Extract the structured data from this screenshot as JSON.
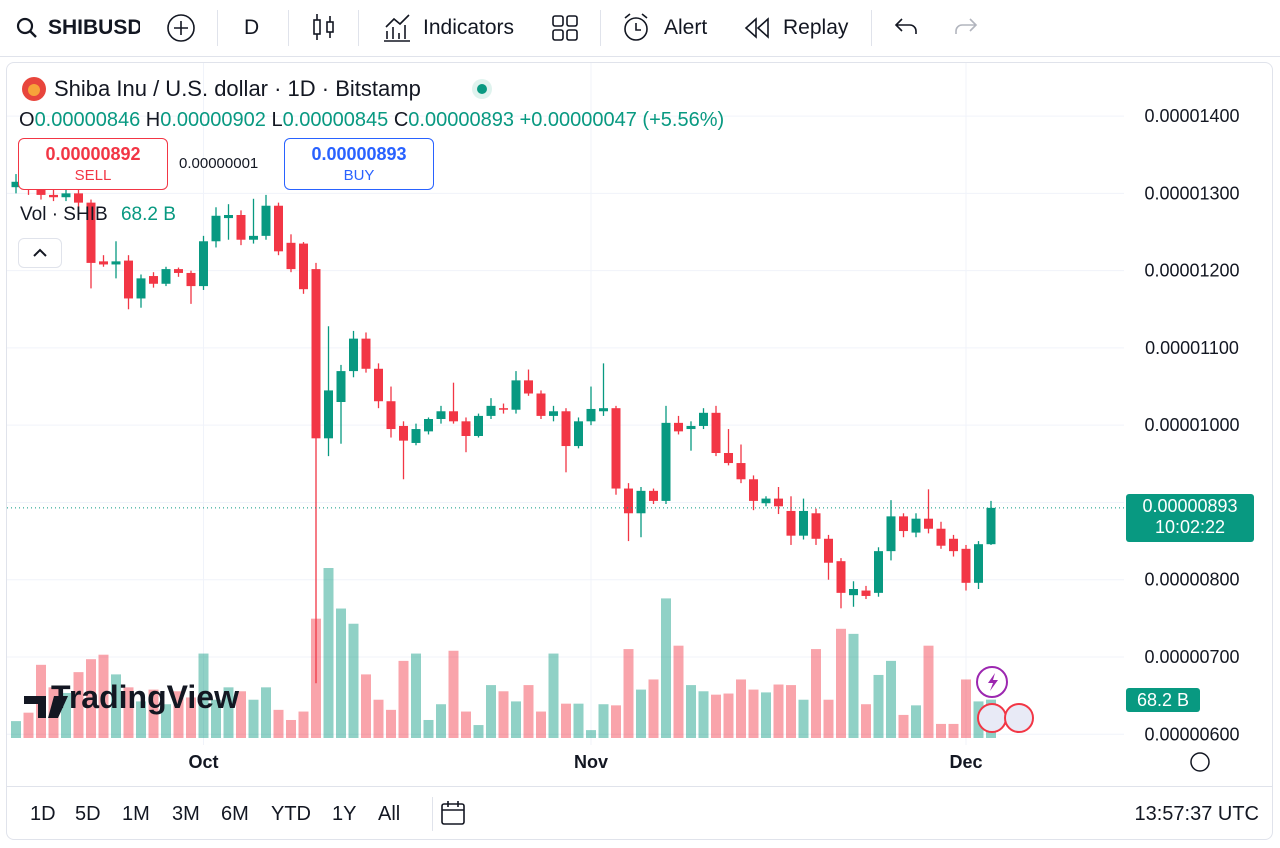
{
  "toolbar": {
    "symbol": "SHIBUSD",
    "interval": "D",
    "indicators": "Indicators",
    "alert": "Alert",
    "replay": "Replay"
  },
  "legend": {
    "title": "Shiba Inu / U.S. dollar · 1D · Bitstamp",
    "o_key": "O",
    "o": "0.00000846",
    "h_key": "H",
    "h": "0.00000902",
    "l_key": "L",
    "l": "0.00000845",
    "c_key": "C",
    "c": "0.00000893",
    "change": "+0.00000047 (+5.56%)"
  },
  "trade": {
    "sell_price": "0.00000892",
    "sell": "SELL",
    "spread": "0.00000001",
    "buy_price": "0.00000893",
    "buy": "BUY"
  },
  "price_tag": {
    "price": "0.00000893",
    "countdown": "10:02:22"
  },
  "watermark": "TradingView",
  "bottom_bar": {
    "ranges": [
      "1D",
      "5D",
      "1M",
      "3M",
      "6M",
      "YTD",
      "1Y",
      "All"
    ],
    "clock": "13:57:37 UTC"
  },
  "chart_data": {
    "type": "candlestick",
    "categories": [
      null,
      null,
      null,
      null,
      null,
      null,
      null,
      null,
      null,
      null,
      null,
      null,
      null,
      null,
      null,
      "Oct",
      null,
      null,
      null,
      null,
      null,
      null,
      null,
      null,
      null,
      null,
      null,
      null,
      null,
      null,
      null,
      null,
      null,
      null,
      null,
      null,
      null,
      null,
      null,
      null,
      null,
      null,
      null,
      null,
      null,
      null,
      "Nov",
      null,
      null,
      null,
      null,
      null,
      null,
      null,
      null,
      null,
      null,
      null,
      null,
      null,
      null,
      null,
      null,
      null,
      null,
      null,
      null,
      null,
      null,
      null,
      null,
      null,
      null,
      null,
      null,
      null,
      "Dec",
      null,
      null
    ],
    "open": [
      1.308e-05,
      1.315e-05,
      1.305e-05,
      1.298e-05,
      1.295e-05,
      1.3e-05,
      1.288e-05,
      1.212e-05,
      1.208e-05,
      1.213e-05,
      1.164e-05,
      1.193e-05,
      1.183e-05,
      1.202e-05,
      1.197e-05,
      1.18e-05,
      1.238e-05,
      1.268e-05,
      1.272e-05,
      1.24e-05,
      1.245e-05,
      1.284e-05,
      1.236e-05,
      1.235e-05,
      1.202e-05,
      9.83e-06,
      1.03e-05,
      1.07e-05,
      1.112e-05,
      1.073e-05,
      1.031e-05,
      9.99e-06,
      9.77e-06,
      9.92e-06,
      1.008e-05,
      1.018e-05,
      1.005e-05,
      9.86e-06,
      1.012e-05,
      1.022e-05,
      1.02e-05,
      1.058e-05,
      1.041e-05,
      1.012e-05,
      1.018e-05,
      9.73e-06,
      1.005e-05,
      1.018e-05,
      1.022e-05,
      9.18e-06,
      8.86e-06,
      9.15e-06,
      9.02e-06,
      1.003e-05,
      9.95e-06,
      9.99e-06,
      1.016e-05,
      9.64e-06,
      9.51e-06,
      9.3e-06,
      8.99e-06,
      9.05e-06,
      8.89e-06,
      8.57e-06,
      8.86e-06,
      8.53e-06,
      8.24e-06,
      7.8e-06,
      7.86e-06,
      7.83e-06,
      8.37e-06,
      8.82e-06,
      8.61e-06,
      8.79e-06,
      8.66e-06,
      8.53e-06,
      8.4e-06,
      7.96e-06,
      8.46e-06
    ],
    "high": [
      1.325e-05,
      1.322e-05,
      1.312e-05,
      1.308e-05,
      1.31e-05,
      1.305e-05,
      1.292e-05,
      1.22e-05,
      1.238e-05,
      1.22e-05,
      1.195e-05,
      1.198e-05,
      1.205e-05,
      1.204e-05,
      1.2e-05,
      1.245e-05,
      1.282e-05,
      1.286e-05,
      1.278e-05,
      1.293e-05,
      1.298e-05,
      1.288e-05,
      1.247e-05,
      1.237e-05,
      1.21e-05,
      1.128e-05,
      1.078e-05,
      1.122e-05,
      1.12e-05,
      1.08e-05,
      1.05e-05,
      1.005e-05,
      1.002e-05,
      1.01e-05,
      1.025e-05,
      1.055e-05,
      1.01e-05,
      1.015e-05,
      1.035e-05,
      1.028e-05,
      1.07e-05,
      1.072e-05,
      1.045e-05,
      1.025e-05,
      1.022e-05,
      1.01e-05,
      1.05e-05,
      1.08e-05,
      1.025e-05,
      9.25e-06,
      9.2e-06,
      9.18e-06,
      1.025e-05,
      1.012e-05,
      1.005e-05,
      1.022e-05,
      1.025e-05,
      9.95e-06,
      9.75e-06,
      9.35e-06,
      9.08e-06,
      9.2e-06,
      9.08e-06,
      9.05e-06,
      8.92e-06,
      8.58e-06,
      8.28e-06,
      7.98e-06,
      7.92e-06,
      8.42e-06,
      9.03e-06,
      8.86e-06,
      8.86e-06,
      9.17e-06,
      8.75e-06,
      8.58e-06,
      8.45e-06,
      8.5e-06,
      9.02e-06
    ],
    "low": [
      1.3e-05,
      1.298e-05,
      1.292e-05,
      1.29e-05,
      1.29e-05,
      1.282e-05,
      1.177e-05,
      1.205e-05,
      1.19e-05,
      1.15e-05,
      1.152e-05,
      1.178e-05,
      1.18e-05,
      1.192e-05,
      1.157e-05,
      1.175e-05,
      1.23e-05,
      1.24e-05,
      1.233e-05,
      1.235e-05,
      1.24e-05,
      1.22e-05,
      1.198e-05,
      1.17e-05,
      6.66e-06,
      9.6e-06,
      9.76e-06,
      1.062e-05,
      1.068e-05,
      1.022e-05,
      9.84e-06,
      9.3e-06,
      9.74e-06,
      9.88e-06,
      1.002e-05,
      1.002e-05,
      9.65e-06,
      9.84e-06,
      1.008e-05,
      1.015e-05,
      1.015e-05,
      1.038e-05,
      1.008e-05,
      1.005e-05,
      9.39e-06,
      9.7e-06,
      1e-05,
      1.012e-05,
      9.1e-06,
      8.5e-06,
      8.55e-06,
      8.98e-06,
      8.98e-06,
      9.88e-06,
      9.67e-06,
      9.95e-06,
      9.6e-06,
      9.48e-06,
      9.25e-06,
      8.9e-06,
      8.95e-06,
      8.85e-06,
      8.45e-06,
      8.52e-06,
      8.45e-06,
      8e-06,
      7.63e-06,
      7.65e-06,
      7.75e-06,
      7.78e-06,
      8.25e-06,
      8.55e-06,
      8.55e-06,
      8.6e-06,
      8.4e-06,
      8.3e-06,
      7.86e-06,
      7.88e-06,
      8.45e-06
    ],
    "close": [
      1.315e-05,
      1.305e-05,
      1.298e-05,
      1.295e-05,
      1.3e-05,
      1.288e-05,
      1.21e-05,
      1.208e-05,
      1.212e-05,
      1.164e-05,
      1.19e-05,
      1.183e-05,
      1.202e-05,
      1.197e-05,
      1.18e-05,
      1.238e-05,
      1.271e-05,
      1.272e-05,
      1.24e-05,
      1.245e-05,
      1.284e-05,
      1.225e-05,
      1.202e-05,
      1.176e-05,
      9.83e-06,
      1.045e-05,
      1.07e-05,
      1.112e-05,
      1.073e-05,
      1.031e-05,
      9.95e-06,
      9.8e-06,
      9.95e-06,
      1.008e-05,
      1.018e-05,
      1.005e-05,
      9.86e-06,
      1.012e-05,
      1.025e-05,
      1.02e-05,
      1.058e-05,
      1.041e-05,
      1.012e-05,
      1.018e-05,
      9.73e-06,
      1.005e-05,
      1.021e-05,
      1.022e-05,
      9.18e-06,
      8.86e-06,
      9.15e-06,
      9.02e-06,
      1.003e-05,
      9.92e-06,
      9.99e-06,
      1.016e-05,
      9.64e-06,
      9.51e-06,
      9.3e-06,
      9.02e-06,
      9.05e-06,
      8.95e-06,
      8.57e-06,
      8.89e-06,
      8.53e-06,
      8.22e-06,
      7.83e-06,
      7.88e-06,
      7.79e-06,
      8.37e-06,
      8.82e-06,
      8.63e-06,
      8.79e-06,
      8.66e-06,
      8.44e-06,
      8.37e-06,
      7.96e-06,
      8.46e-06,
      8.93e-06
    ],
    "up_color": "#089981",
    "down_color": "#f23645",
    "volume": {
      "name": "Vol · SHIB",
      "label": "68.2 B",
      "values": [
        30,
        45,
        130,
        90,
        80,
        117,
        140,
        148,
        113,
        90,
        65,
        86,
        60,
        83,
        72,
        150,
        68,
        90,
        83,
        68,
        90,
        50,
        32,
        47,
        212,
        302,
        230,
        203,
        113,
        68,
        50,
        137,
        150,
        32,
        60,
        155,
        47,
        23,
        94,
        83,
        65,
        94,
        47,
        150,
        61,
        61,
        14,
        60,
        58,
        158,
        86,
        104,
        248,
        164,
        94,
        83,
        77,
        79,
        104,
        86,
        81,
        95,
        94,
        68,
        158,
        68,
        194,
        185,
        60,
        112,
        137,
        41,
        58,
        164,
        25,
        25,
        104,
        65,
        68.2
      ]
    },
    "ylim": [
      5.9e-06,
      1.47e-05
    ],
    "yticks": [
      {
        "value": 6e-06,
        "label": "0.00000600"
      },
      {
        "value": 7e-06,
        "label": "0.00000700"
      },
      {
        "value": 8e-06,
        "label": "0.00000800"
      },
      {
        "value": 9e-06,
        "label": "0.00000900"
      },
      {
        "value": 1e-05,
        "label": "0.00001000"
      },
      {
        "value": 1.1e-05,
        "label": "0.00001100"
      },
      {
        "value": 1.2e-05,
        "label": "0.00001200"
      },
      {
        "value": 1.3e-05,
        "label": "0.00001300"
      },
      {
        "value": 1.4e-05,
        "label": "0.00001400"
      }
    ],
    "grid": true
  }
}
